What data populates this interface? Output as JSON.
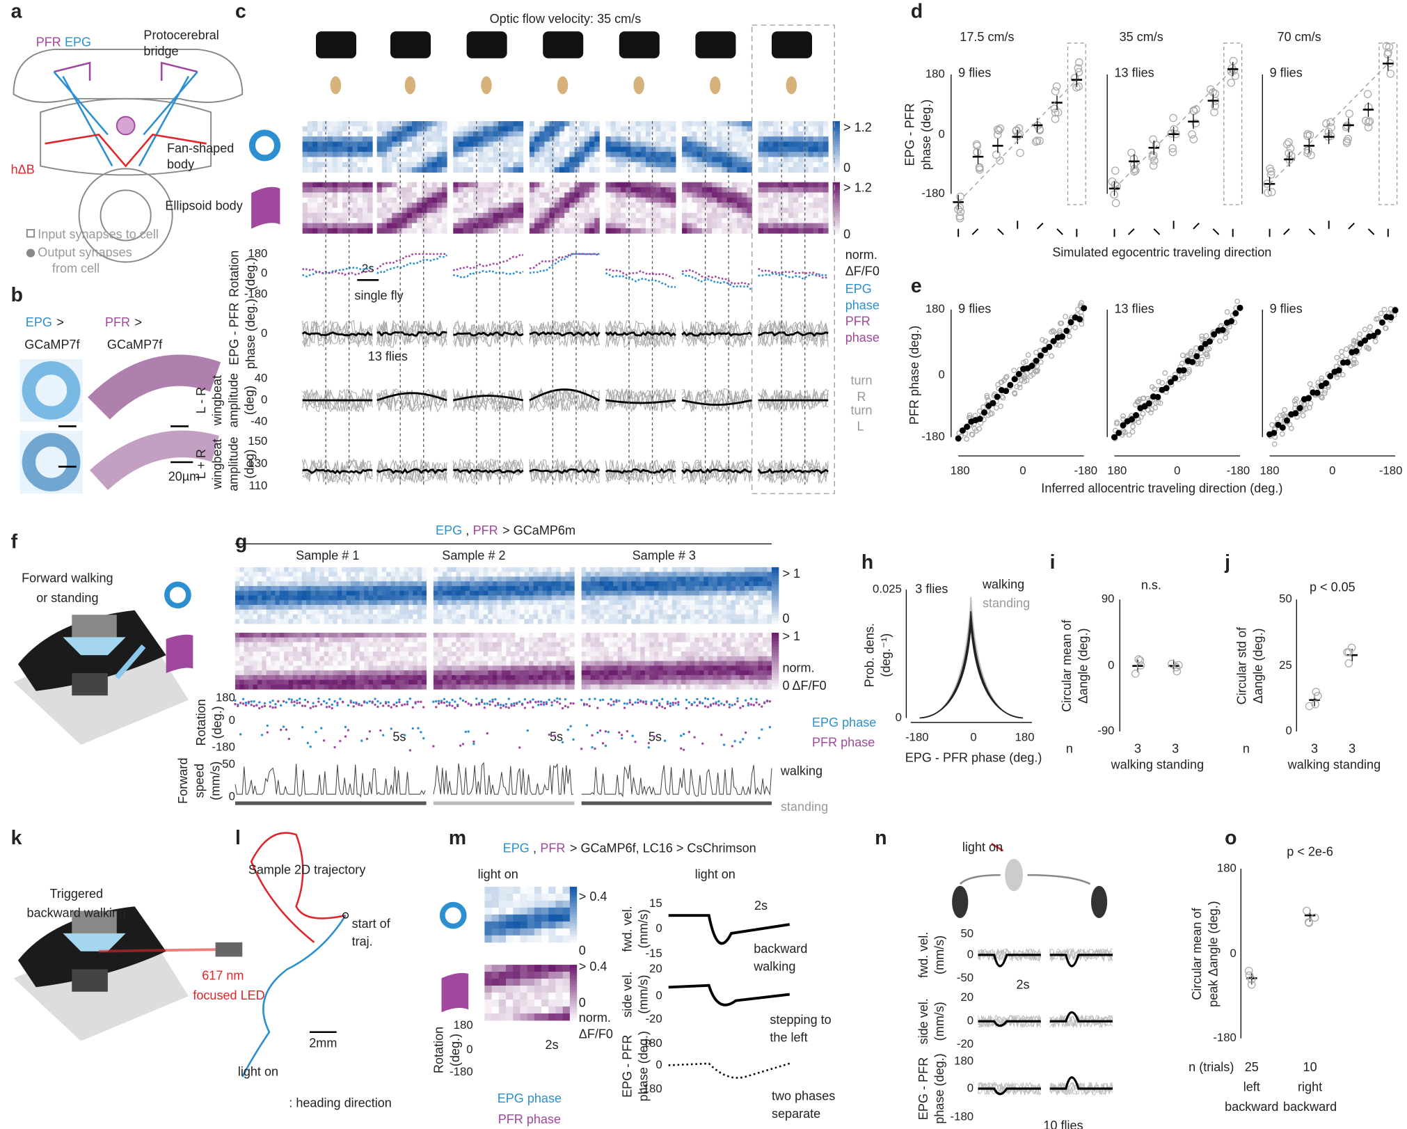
{
  "panel_labels": [
    "a",
    "b",
    "c",
    "d",
    "e",
    "f",
    "g",
    "h",
    "i",
    "j",
    "k",
    "l",
    "m",
    "n",
    "o"
  ],
  "a": {
    "texts": [
      "PFR",
      "EPG",
      "Protocerebral",
      "bridge",
      "Fan-shaped",
      "body",
      "hΔB",
      "Ellipsoid body",
      "Input synapses to cell",
      "Output synapses",
      "from cell"
    ]
  },
  "b": {
    "texts": [
      "EPG",
      ">",
      "GCaMP7f",
      "PFR",
      ">",
      "GCaMP7f",
      "20µm"
    ]
  },
  "c": {
    "texts": [
      "Optic flow velocity: 35 cm/s",
      "> 1.2",
      "0",
      "> 1.2",
      "0",
      "2s",
      "180",
      "0",
      "-180",
      "Rotation",
      "(deg.)",
      "single fly",
      "norm.",
      "ΔF/F0",
      "EPG",
      "phase",
      "PFR",
      "phase",
      "0",
      "EPG - PFR",
      "phase (deg.)",
      "13 flies",
      "40",
      "0",
      "-40",
      "L - R",
      "wingbeat",
      "amplitude",
      "(deg)",
      "turn",
      "R",
      "turn",
      "L",
      "150",
      "130",
      "110",
      "L + R",
      "wingbeat",
      "amplitude",
      "(deg)"
    ]
  },
  "d": {
    "texts": [
      "17.5 cm/s",
      "35 cm/s",
      "70 cm/s",
      "180",
      "0",
      "-180",
      "9 flies",
      "13 flies",
      "9 flies",
      "EPG - PFR",
      "phase (deg.)",
      "Simulated egocentric traveling direction"
    ],
    "means": [
      [
        -205,
        -68,
        -35,
        -8,
        27,
        95,
        164
      ],
      [
        -164,
        -82,
        -41,
        0,
        38,
        101,
        196
      ],
      [
        -150,
        -76,
        -35,
        -8,
        27,
        74,
        213
      ]
    ],
    "ylim": [
      -180,
      180
    ]
  },
  "e": {
    "texts": [
      "180",
      "0",
      "-180",
      "PFR phase (deg.)",
      "9 flies",
      "13 flies",
      "9 flies",
      "180",
      "0",
      "-180",
      "180",
      "0",
      "-180",
      "180",
      "0",
      "-180",
      "Inferred allocentric traveling direction (deg.)"
    ]
  },
  "f": {
    "texts": [
      "Forward walking",
      "or standing"
    ]
  },
  "g": {
    "texts": [
      "EPG",
      ",",
      "PFR",
      "> GCaMP6m",
      "Sample # 1",
      "Sample # 2",
      "Sample # 3",
      "> 1",
      "0",
      "> 1",
      "norm.",
      "0 ΔF/F0",
      "180",
      "0",
      "-180",
      "Rotation",
      "(deg.)",
      "5s",
      "5s",
      "5s",
      "EPG phase",
      "PFR phase",
      "50",
      "0",
      "Forward",
      "speed",
      "(mm/s)",
      "walking",
      "standing"
    ]
  },
  "h": {
    "texts": [
      "0.025",
      "0",
      "3 flies",
      "walking",
      "standing",
      "-180",
      "0",
      "180",
      "EPG - PFR phase (deg.)",
      "Prob. dens.",
      "(deg.⁻¹)"
    ]
  },
  "i": {
    "texts": [
      "90",
      "0",
      "-90",
      "n.s.",
      "Circular mean of",
      "Δangle (deg.)",
      "n",
      "3",
      "3",
      "walking standing"
    ]
  },
  "j": {
    "texts": [
      "50",
      "25",
      "0",
      "p < 0.05",
      "Circular std of",
      "Δangle (deg.)",
      "n",
      "3",
      "3",
      "walking standing"
    ]
  },
  "k": {
    "texts": [
      "Triggered",
      "backward walking",
      "617 nm",
      "focused LED"
    ]
  },
  "l": {
    "texts": [
      "Sample 2D trajectory",
      "start of",
      "traj.",
      "2mm",
      "light on",
      ": heading direction"
    ]
  },
  "m": {
    "texts": [
      "EPG",
      ",",
      "PFR",
      "> GCaMP6f, LC16 > CsChrimson",
      "light on",
      "light on",
      "> 0.4",
      "0",
      "> 0.4",
      "0",
      "norm.",
      "ΔF/F0",
      "180",
      "0",
      "-180",
      "Rotation",
      "(deg.)",
      "2s",
      "EPG phase",
      "PFR phase",
      "15",
      "0",
      "-15",
      "fwd. vel.",
      "(mm/s)",
      "2s",
      "backward",
      "walking",
      "20",
      "0",
      "-20",
      "side vel.",
      "(mm/s)",
      "stepping to",
      "the left",
      "180",
      "0",
      "-180",
      "EPG - PFR",
      "phase (deg.)",
      "two phases",
      "separate"
    ]
  },
  "n": {
    "texts": [
      "light on",
      "50",
      "0",
      "-50",
      "fwd. vel.",
      "(mm/s)",
      "2s",
      "20",
      "0",
      "-20",
      "side vel.",
      "(mm/s)",
      "180",
      "0",
      "-180",
      "EPG - PFR",
      "phase (deg.)",
      "10 flies"
    ]
  },
  "o": {
    "texts": [
      "p < 2e-6",
      "180",
      "0",
      "-180",
      "Circular mean of",
      "peak Δangle (deg.)",
      "n (trials)",
      "25",
      "10",
      "left",
      "backward",
      "right",
      "backward"
    ]
  }
}
